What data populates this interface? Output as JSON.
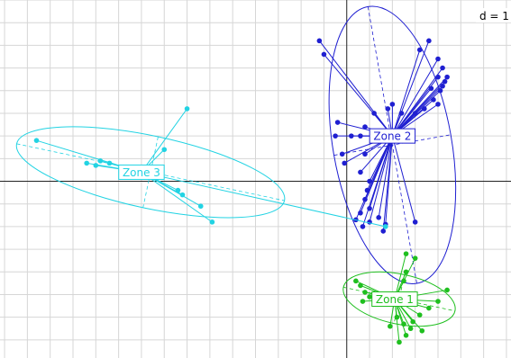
{
  "chart_data": {
    "type": "scatter",
    "title": "",
    "scale_label": "d = 1",
    "grid": true,
    "axes_origin": [
      0,
      0
    ],
    "xlim": [
      -7.6,
      3.6
    ],
    "ylim": [
      -3.9,
      4.0
    ],
    "series": [
      {
        "name": "Zone 2",
        "color": "#1f1fd1",
        "centroid": [
          1.0,
          1.0
        ],
        "ellipse": {
          "center": [
            1.0,
            0.8
          ],
          "rx": 1.3,
          "ry": 3.1,
          "rotation_deg": 10
        },
        "points": [
          [
            -0.6,
            3.1
          ],
          [
            -0.5,
            2.8
          ],
          [
            1.8,
            3.1
          ],
          [
            1.6,
            2.9
          ],
          [
            2.0,
            2.7
          ],
          [
            2.1,
            2.5
          ],
          [
            2.2,
            2.3
          ],
          [
            2.1,
            2.1
          ],
          [
            2.05,
            2.0
          ],
          [
            1.9,
            1.8
          ],
          [
            2.0,
            2.3
          ],
          [
            2.15,
            2.2
          ],
          [
            1.85,
            2.05
          ],
          [
            1.7,
            1.6
          ],
          [
            2.0,
            1.7
          ],
          [
            1.0,
            1.7
          ],
          [
            0.9,
            1.6
          ],
          [
            0.6,
            1.5
          ],
          [
            1.2,
            1.5
          ],
          [
            1.5,
            1.5
          ],
          [
            -0.2,
            1.3
          ],
          [
            -0.25,
            1.0
          ],
          [
            0.4,
            1.2
          ],
          [
            0.3,
            1.0
          ],
          [
            0.1,
            1.0
          ],
          [
            -0.05,
            0.4
          ],
          [
            -0.1,
            0.6
          ],
          [
            0.4,
            0.6
          ],
          [
            0.3,
            0.2
          ],
          [
            0.5,
            0.0
          ],
          [
            0.45,
            -0.2
          ],
          [
            0.4,
            -0.4
          ],
          [
            0.5,
            -0.6
          ],
          [
            0.3,
            -0.7
          ],
          [
            0.2,
            -0.85
          ],
          [
            0.35,
            -1.0
          ],
          [
            0.5,
            -0.9
          ],
          [
            0.7,
            -0.8
          ],
          [
            0.85,
            -0.95
          ],
          [
            0.8,
            -1.1
          ],
          [
            1.5,
            -0.9
          ]
        ]
      },
      {
        "name": "Zone 3",
        "color": "#22d3e3",
        "centroid": [
          -4.5,
          0.2
        ],
        "ellipse": {
          "center": [
            -4.3,
            0.2
          ],
          "rx": 3.0,
          "ry": 0.8,
          "rotation_deg": -12
        },
        "points": [
          [
            -6.8,
            0.9
          ],
          [
            -5.7,
            0.4
          ],
          [
            -5.5,
            0.35
          ],
          [
            -5.4,
            0.45
          ],
          [
            -5.2,
            0.4
          ],
          [
            -3.5,
            1.6
          ],
          [
            -4.0,
            0.7
          ],
          [
            -3.7,
            -0.2
          ],
          [
            -3.6,
            -0.3
          ],
          [
            -3.2,
            -0.55
          ],
          [
            -2.95,
            -0.9
          ],
          [
            0.85,
            -1.0
          ]
        ]
      },
      {
        "name": "Zone 1",
        "color": "#1fbf1f",
        "centroid": [
          1.05,
          -2.6
        ],
        "ellipse": {
          "center": [
            1.15,
            -2.6
          ],
          "rx": 1.25,
          "ry": 0.55,
          "rotation_deg": -12
        },
        "points": [
          [
            1.3,
            -1.6
          ],
          [
            1.5,
            -1.7
          ],
          [
            1.3,
            -2.0
          ],
          [
            1.25,
            -2.2
          ],
          [
            0.2,
            -2.2
          ],
          [
            0.3,
            -2.3
          ],
          [
            0.4,
            -2.45
          ],
          [
            0.5,
            -2.55
          ],
          [
            0.65,
            -2.5
          ],
          [
            0.35,
            -2.65
          ],
          [
            1.5,
            -2.7
          ],
          [
            2.2,
            -2.4
          ],
          [
            2.0,
            -2.65
          ],
          [
            1.8,
            -2.8
          ],
          [
            1.6,
            -2.95
          ],
          [
            1.45,
            -3.1
          ],
          [
            1.25,
            -3.15
          ],
          [
            1.4,
            -3.25
          ],
          [
            1.65,
            -3.3
          ],
          [
            1.3,
            -3.4
          ],
          [
            1.1,
            -3.0
          ],
          [
            0.95,
            -3.2
          ],
          [
            1.15,
            -3.55
          ]
        ]
      }
    ]
  }
}
